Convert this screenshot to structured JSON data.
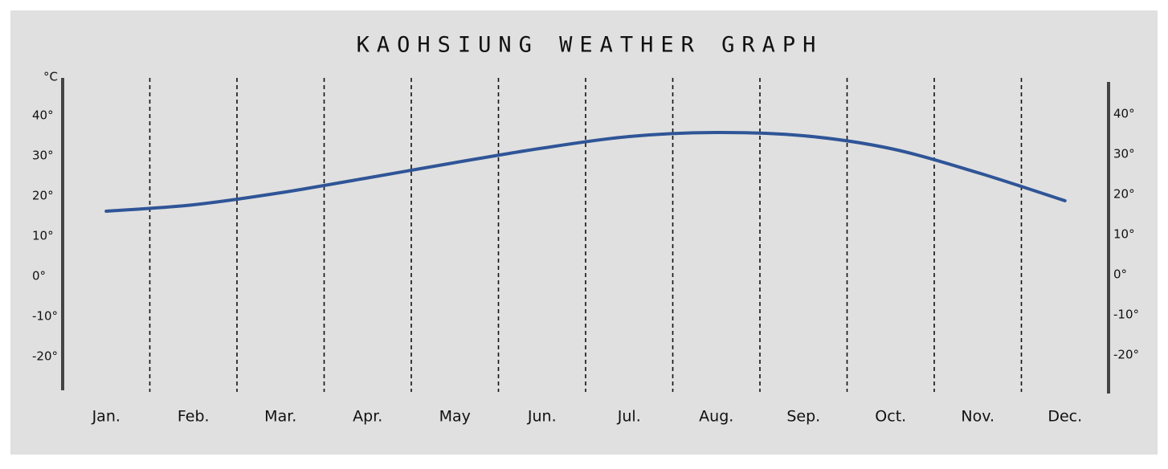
{
  "chart_data": {
    "type": "line",
    "title": "KAOHSIUNG WEATHER GRAPH",
    "y_label": "°C",
    "categories": [
      "Jan.",
      "Feb.",
      "Mar.",
      "Apr.",
      "May",
      "Jun.",
      "Jul.",
      "Aug.",
      "Sep.",
      "Oct.",
      "Nov.",
      "Dec."
    ],
    "series": [
      {
        "color": "#2f5597",
        "values": [
          16.2,
          17.8,
          20.8,
          24.5,
          28.3,
          31.9,
          34.8,
          35.8,
          35.0,
          31.8,
          25.8,
          18.8
        ]
      }
    ],
    "ylim": [
      -28.4,
      49.4
    ],
    "yticks": [
      {
        "value": -20,
        "label": "-20°"
      },
      {
        "value": -10,
        "label": "-10°"
      },
      {
        "value": 0,
        "label": "0°"
      },
      {
        "value": 10,
        "label": "10°"
      },
      {
        "value": 20,
        "label": "20°"
      },
      {
        "value": 30,
        "label": "30°"
      },
      {
        "value": 40,
        "label": "40°"
      }
    ],
    "grid": false
  }
}
